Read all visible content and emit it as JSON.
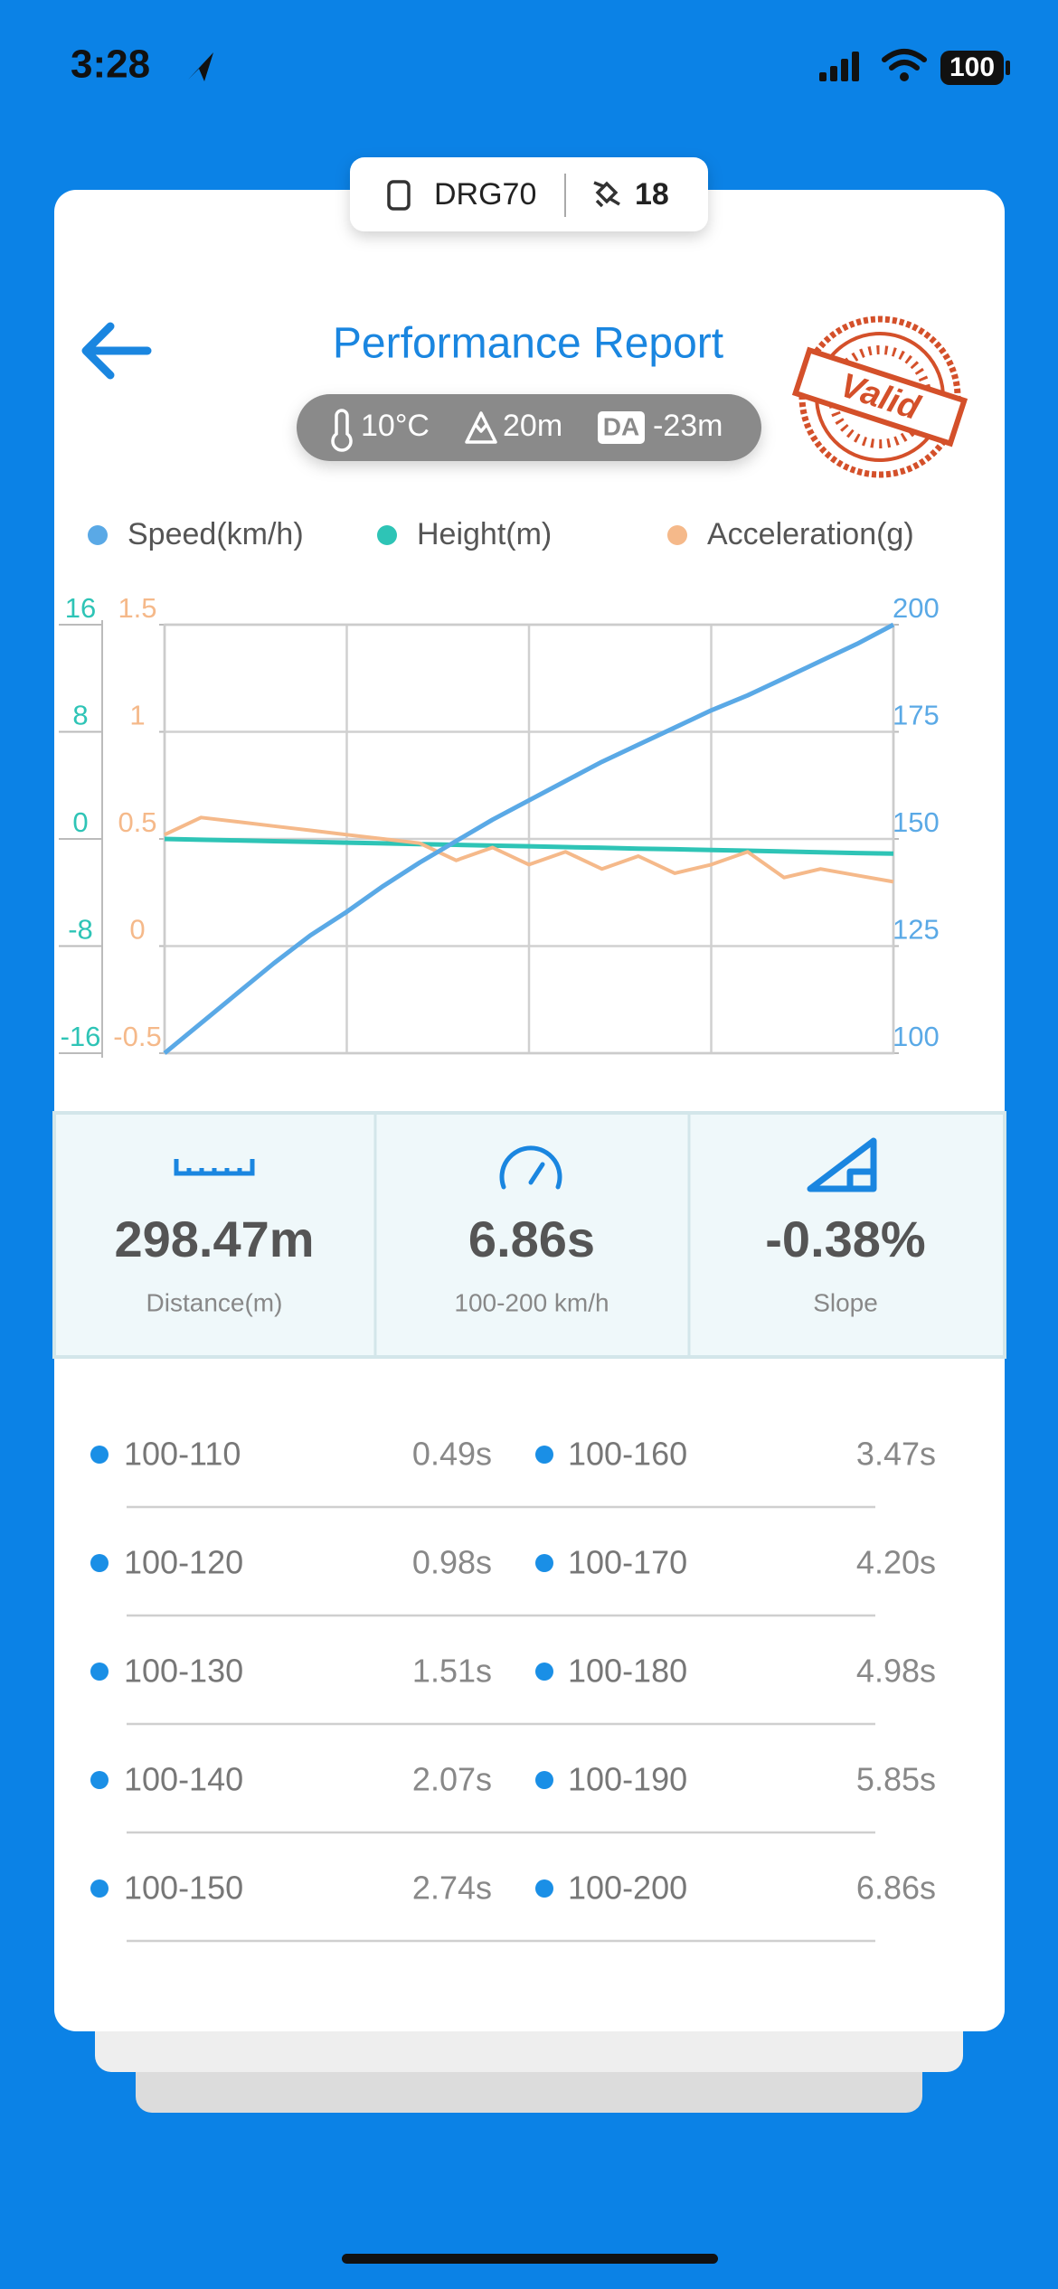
{
  "status_bar": {
    "time": "3:28",
    "battery": "100"
  },
  "device": {
    "name": "DRG70",
    "satellites": "18"
  },
  "header": {
    "title": "Performance Report",
    "conditions": {
      "temperature": "10°C",
      "altitude": "20m",
      "da_label": "DA",
      "density_altitude": "-23m"
    },
    "stamp": "Valid"
  },
  "chart_data": {
    "type": "line",
    "grid": true,
    "legend": "top",
    "series": [
      {
        "name": "Speed(km/h)",
        "color": "#5aa9e6",
        "axis": "y2",
        "values": [
          100,
          107,
          114,
          121,
          127.5,
          133,
          139,
          144.5,
          149.5,
          154.5,
          159,
          163.5,
          168,
          172,
          176,
          180,
          183.5,
          187.5,
          191.5,
          195.5,
          200
        ]
      },
      {
        "name": "Height(m)",
        "color": "#2ec4b6",
        "values": [
          0,
          -0.06,
          -0.11,
          -0.17,
          -0.22,
          -0.28,
          -0.33,
          -0.39,
          -0.44,
          -0.5,
          -0.55,
          -0.61,
          -0.66,
          -0.72,
          -0.77,
          -0.83,
          -0.88,
          -0.94,
          -0.99,
          -1.05,
          -1.1
        ]
      },
      {
        "name": "Acceleration(g)",
        "color": "#f5b98a",
        "axis": "y3",
        "values": [
          0.52,
          0.6,
          0.58,
          0.56,
          0.54,
          0.52,
          0.5,
          0.48,
          0.4,
          0.46,
          0.38,
          0.44,
          0.36,
          0.42,
          0.34,
          0.38,
          0.44,
          0.32,
          0.36,
          0.33,
          0.3
        ]
      }
    ],
    "ylim": [
      -16,
      16
    ],
    "yticks": [
      -16,
      -8,
      0,
      8,
      16
    ],
    "y2lim": [
      100,
      200
    ],
    "y2ticks": [
      100,
      125,
      150,
      175,
      200
    ],
    "y3lim": [
      -0.5,
      1.5
    ],
    "y3ticks": [
      -0.5,
      0,
      0.5,
      1,
      1.5
    ]
  },
  "stats": [
    {
      "value": "298.47m",
      "label": "Distance(m)"
    },
    {
      "value": "6.86s",
      "label": "100-200 km/h"
    },
    {
      "value": "-0.38%",
      "label": "Slope"
    }
  ],
  "splits": [
    {
      "range": "100-110",
      "time": "0.49s"
    },
    {
      "range": "100-120",
      "time": "0.98s"
    },
    {
      "range": "100-130",
      "time": "1.51s"
    },
    {
      "range": "100-140",
      "time": "2.07s"
    },
    {
      "range": "100-150",
      "time": "2.74s"
    },
    {
      "range": "100-160",
      "time": "3.47s"
    },
    {
      "range": "100-170",
      "time": "4.20s"
    },
    {
      "range": "100-180",
      "time": "4.98s"
    },
    {
      "range": "100-190",
      "time": "5.85s"
    },
    {
      "range": "100-200",
      "time": "6.86s"
    }
  ]
}
